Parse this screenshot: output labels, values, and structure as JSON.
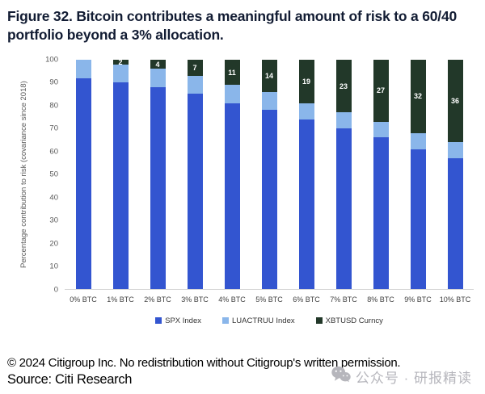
{
  "title": "Figure 32. Bitcoin contributes a meaningful amount of risk to a 60/40 portfolio beyond a 3% allocation.",
  "chart_data": {
    "type": "bar",
    "stacked": true,
    "categories": [
      "0% BTC",
      "1% BTC",
      "2% BTC",
      "3% BTC",
      "4% BTC",
      "5% BTC",
      "6% BTC",
      "7% BTC",
      "8% BTC",
      "9% BTC",
      "10% BTC"
    ],
    "series": [
      {
        "name": "SPX Index",
        "color": "#3355d0",
        "values": [
          92,
          90,
          88,
          85,
          81,
          78,
          74,
          70,
          66,
          61,
          57
        ],
        "data_labels": false
      },
      {
        "name": "LUACTRUU Index",
        "color": "#8ab6ea",
        "values": [
          8,
          8,
          8,
          8,
          8,
          8,
          7,
          7,
          7,
          7,
          7
        ],
        "data_labels": false
      },
      {
        "name": "XBTUSD Curncy",
        "color": "#223829",
        "values": [
          0,
          2,
          4,
          7,
          11,
          14,
          19,
          23,
          27,
          32,
          36
        ],
        "data_labels": true
      }
    ],
    "title": "",
    "xlabel": "",
    "ylabel": "Percentage contribution to risk (covariance since 2018)",
    "ylim": [
      0,
      100
    ],
    "ytick_step": 10,
    "grid": false,
    "legend_position": "bottom"
  },
  "footer": {
    "copyright": "© 2024 Citigroup Inc. No redistribution without Citigroup's written permission.",
    "source": "Source: Citi Research"
  },
  "watermark": {
    "icon": "wechat-icon",
    "text": "公众号 · 研报精读",
    "color": "#b6b6bc"
  }
}
